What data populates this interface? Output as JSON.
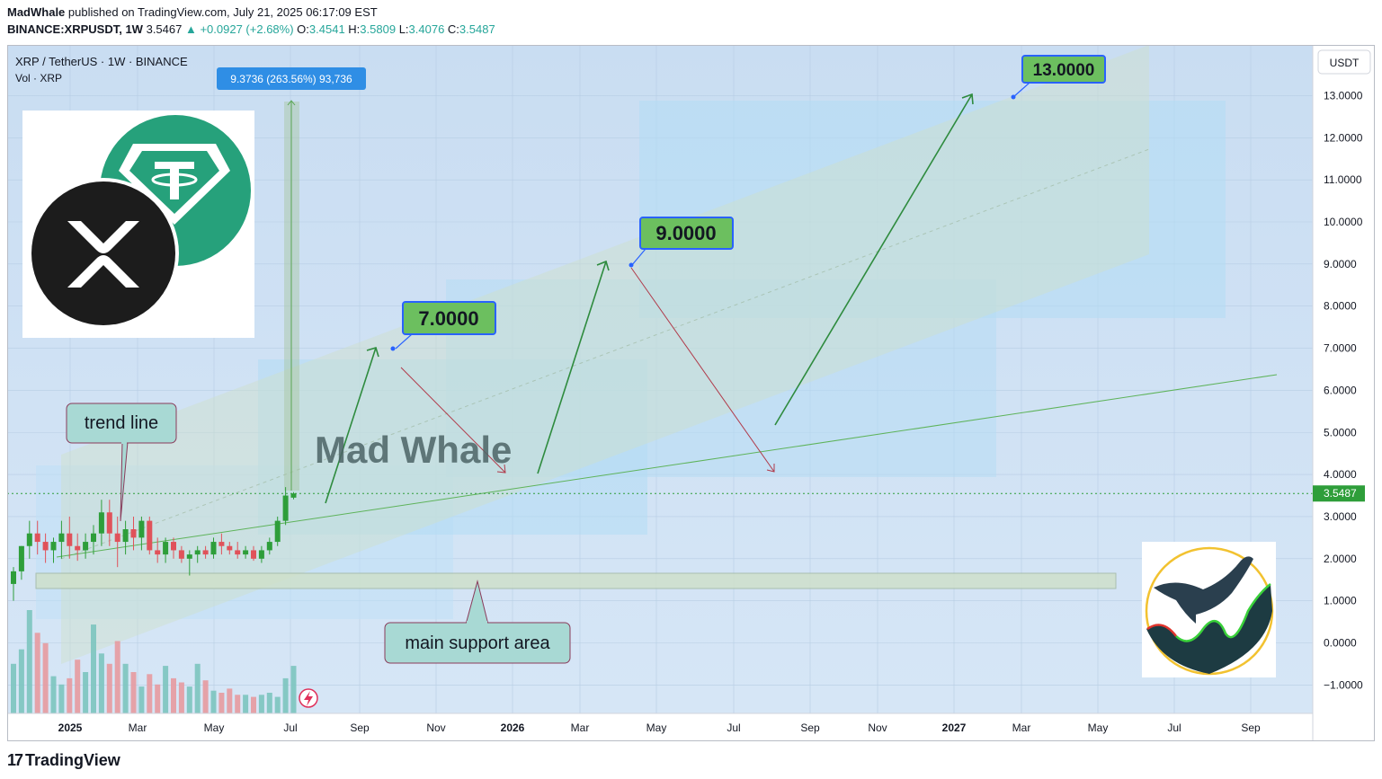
{
  "header": {
    "author": "MadWhale",
    "published": "published on TradingView.com, July 21, 2025 06:17:09 EST",
    "symbol": "BINANCE:XRPUSDT, 1W",
    "last": "3.5467",
    "change": "▲ +0.0927 (+2.68%)",
    "o_label": "O:",
    "o": "3.4541",
    "h_label": "H:",
    "h": "3.5809",
    "l_label": "L:",
    "l": "3.4076",
    "c_label": "C:",
    "c": "3.5487"
  },
  "legend": {
    "title": "XRP / TetherUS · 1W · BINANCE",
    "volume": "Vol · XRP"
  },
  "currency_button": "USDT",
  "footer": {
    "brand": "TradingView"
  },
  "colors": {
    "up": "#26a69a",
    "candle_up": "#2e9e3a",
    "candle_down": "#e0525a",
    "label_green": "#6cbf5f",
    "accent_blue": "#2962ff",
    "projection": "#2e8b3e",
    "down_arrow": "#b03a4a"
  },
  "chart_data": {
    "type": "candlestick",
    "price": {
      "ticks": [
        "13.0000",
        "12.0000",
        "11.0000",
        "10.0000",
        "9.0000",
        "8.0000",
        "7.0000",
        "6.0000",
        "5.0000",
        "4.0000",
        "3.0000",
        "2.0000",
        "1.0000",
        "0.0000",
        "−1.0000"
      ],
      "tick_values": [
        13,
        12,
        11,
        10,
        9,
        8,
        7,
        6,
        5,
        4,
        3,
        2,
        1,
        0,
        -1
      ],
      "current": 3.5487,
      "current_label": "3.5487"
    },
    "time": {
      "labels": [
        "2025",
        "Mar",
        "May",
        "Jul",
        "Sep",
        "Nov",
        "2026",
        "Mar",
        "May",
        "Jul",
        "Sep",
        "Nov",
        "2027",
        "Mar",
        "May",
        "Jul",
        "Sep"
      ],
      "bold": [
        "2025",
        "2026",
        "2027"
      ]
    },
    "candles": [
      [
        1.4,
        1.8,
        1.0,
        1.7
      ],
      [
        1.7,
        2.3,
        1.5,
        2.3
      ],
      [
        2.3,
        2.9,
        2.0,
        2.6
      ],
      [
        2.6,
        2.9,
        2.1,
        2.4
      ],
      [
        2.4,
        2.6,
        1.9,
        2.2
      ],
      [
        2.2,
        2.5,
        1.9,
        2.4
      ],
      [
        2.4,
        2.9,
        2.0,
        2.6
      ],
      [
        2.6,
        3.0,
        2.0,
        2.3
      ],
      [
        2.3,
        2.6,
        1.95,
        2.2
      ],
      [
        2.2,
        2.6,
        2.0,
        2.4
      ],
      [
        2.4,
        2.8,
        2.1,
        2.6
      ],
      [
        2.6,
        3.4,
        2.3,
        3.1
      ],
      [
        3.1,
        3.4,
        2.3,
        2.6
      ],
      [
        2.6,
        3.0,
        1.8,
        2.4
      ],
      [
        2.4,
        2.9,
        2.1,
        2.7
      ],
      [
        2.7,
        3.0,
        2.2,
        2.5
      ],
      [
        2.5,
        3.0,
        2.2,
        2.9
      ],
      [
        2.9,
        3.0,
        2.1,
        2.2
      ],
      [
        2.2,
        2.5,
        1.9,
        2.1
      ],
      [
        2.1,
        2.5,
        1.9,
        2.4
      ],
      [
        2.4,
        2.5,
        2.0,
        2.2
      ],
      [
        2.2,
        2.3,
        1.9,
        2.0
      ],
      [
        2.0,
        2.2,
        1.6,
        2.1
      ],
      [
        2.1,
        2.3,
        1.9,
        2.2
      ],
      [
        2.2,
        2.3,
        2.0,
        2.1
      ],
      [
        2.1,
        2.5,
        2.0,
        2.4
      ],
      [
        2.4,
        2.6,
        2.1,
        2.3
      ],
      [
        2.3,
        2.4,
        2.1,
        2.2
      ],
      [
        2.2,
        2.4,
        2.0,
        2.1
      ],
      [
        2.1,
        2.3,
        2.0,
        2.2
      ],
      [
        2.2,
        2.3,
        1.95,
        2.0
      ],
      [
        2.0,
        2.3,
        1.9,
        2.2
      ],
      [
        2.2,
        2.5,
        2.1,
        2.4
      ],
      [
        2.4,
        3.0,
        2.3,
        2.9
      ],
      [
        2.9,
        3.7,
        2.8,
        3.5
      ],
      [
        3.45,
        3.58,
        3.41,
        3.55
      ]
    ],
    "volume": [
      48,
      62,
      100,
      78,
      68,
      36,
      28,
      34,
      52,
      40,
      86,
      58,
      48,
      70,
      48,
      40,
      26,
      38,
      28,
      46,
      34,
      30,
      26,
      48,
      32,
      22,
      20,
      24,
      18,
      18,
      16,
      18,
      20,
      16,
      34,
      46
    ],
    "projection_targets": [
      "7.0000",
      "9.0000",
      "13.0000"
    ],
    "measure_label": "9.3736 (263.56%) 93,736",
    "annotations": {
      "trend": "trend line",
      "support": "main support area",
      "watermark": "Mad Whale"
    }
  }
}
